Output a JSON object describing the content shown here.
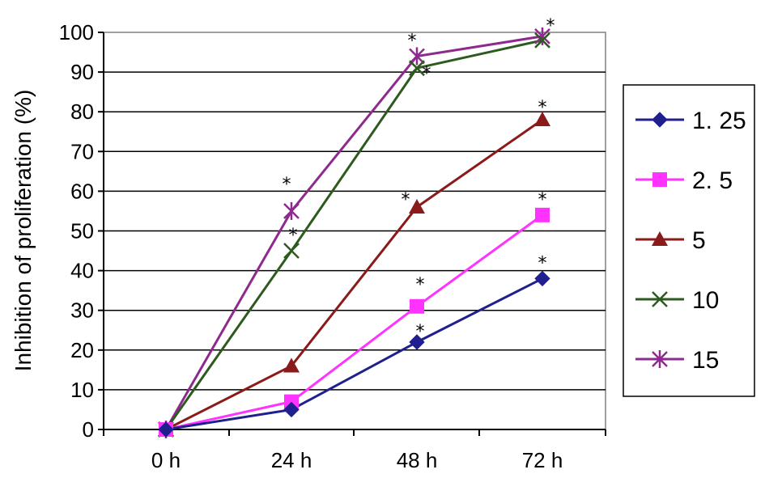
{
  "chart_data": {
    "type": "line",
    "title": "",
    "xlabel": "",
    "ylabel": "Inhibition of proliferation (%)",
    "categories": [
      "0 h",
      "24 h",
      "48 h",
      "72 h"
    ],
    "ylim": [
      0,
      100
    ],
    "yticks": [
      "0",
      "10",
      "20",
      "30",
      "40",
      "50",
      "60",
      "70",
      "80",
      "90",
      "100"
    ],
    "grid": "horizontal",
    "legend_position": "right",
    "series": [
      {
        "name": "1. 25",
        "values": [
          0,
          5,
          22,
          38
        ],
        "color": "#1f1f8f",
        "marker": "diamond"
      },
      {
        "name": "2. 5",
        "values": [
          0,
          7,
          31,
          54
        ],
        "color": "#ff33ff",
        "marker": "square"
      },
      {
        "name": "5",
        "values": [
          0,
          16,
          56,
          78
        ],
        "color": "#8b1a1a",
        "marker": "triangle"
      },
      {
        "name": "10",
        "values": [
          0,
          45,
          91,
          98
        ],
        "color": "#2d5a1e",
        "marker": "x"
      },
      {
        "name": "15",
        "values": [
          0,
          55,
          94,
          99
        ],
        "color": "#8e2a8e",
        "marker": "asterisk"
      }
    ],
    "annotations": [
      {
        "text": "*",
        "x": "24 h",
        "y": 55,
        "series": "15"
      },
      {
        "text": "*",
        "x": "24 h",
        "y": 45,
        "series": "10"
      },
      {
        "text": "*",
        "x": "48 h",
        "y": 94,
        "series": "15"
      },
      {
        "text": "*",
        "x": "48 h",
        "y": 91,
        "series": "10"
      },
      {
        "text": "*",
        "x": "48 h",
        "y": 56,
        "series": "5"
      },
      {
        "text": "*",
        "x": "48 h",
        "y": 31,
        "series": "2. 5"
      },
      {
        "text": "*",
        "x": "48 h",
        "y": 22,
        "series": "1. 25"
      },
      {
        "text": "*",
        "x": "72 h",
        "y": 99,
        "series": "15"
      },
      {
        "text": "*",
        "x": "72 h",
        "y": 78,
        "series": "5"
      },
      {
        "text": "*",
        "x": "72 h",
        "y": 54,
        "series": "2. 5"
      },
      {
        "text": "*",
        "x": "72 h",
        "y": 38,
        "series": "1. 25"
      }
    ]
  }
}
